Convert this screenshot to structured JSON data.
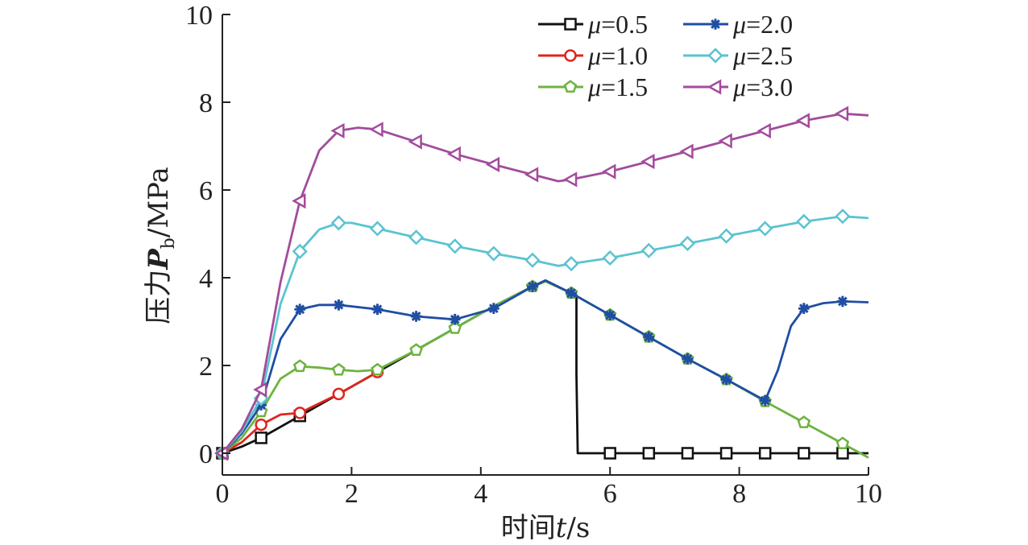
{
  "chart_data": {
    "type": "line",
    "xlabel": "时间t/s",
    "ylabel": "压力P_b/MPa",
    "ylabel_parts": {
      "prefix": "压力",
      "var": "P",
      "sub": "b",
      "suffix": "/MPa"
    },
    "xlabel_parts": {
      "prefix": "时间",
      "var": "t",
      "suffix": "/s"
    },
    "xlim": [
      0,
      10
    ],
    "ylim": [
      0,
      10
    ],
    "xticks": [
      "0",
      "2",
      "4",
      "6",
      "8",
      "10"
    ],
    "yticks": [
      "0",
      "2",
      "4",
      "6",
      "8",
      "10"
    ],
    "grid": false,
    "legend_position": "top-right",
    "series": [
      {
        "name": "μ=0.5",
        "label_var": "μ",
        "label_val": "=0.5",
        "color": "#111111",
        "marker": "square",
        "x": [
          0,
          0.3,
          0.6,
          1.2,
          1.8,
          2.4,
          3.0,
          3.6,
          4.2,
          4.8,
          5.0,
          5.4,
          5.48,
          5.48,
          5.5,
          6.0,
          6.6,
          7.2,
          7.8,
          8.4,
          9.0,
          9.6,
          10.0
        ],
        "y": [
          0,
          0.15,
          0.35,
          0.85,
          1.35,
          1.85,
          2.35,
          2.85,
          3.35,
          3.8,
          3.92,
          3.65,
          3.6,
          1.8,
          0,
          0,
          0,
          0,
          0,
          0,
          0,
          0,
          0
        ],
        "markers_x": [
          0,
          0.6,
          1.2,
          6.0,
          6.6,
          7.2,
          7.8,
          8.4,
          9.0,
          9.6
        ],
        "markers_y": [
          0,
          0.35,
          0.85,
          0,
          0,
          0,
          0,
          0,
          0,
          0
        ]
      },
      {
        "name": "μ=1.0",
        "label_var": "μ",
        "label_val": "=1.0",
        "color": "#e0251c",
        "marker": "circle",
        "x": [
          0,
          0.3,
          0.6,
          0.9,
          1.2,
          1.8,
          2.4
        ],
        "y": [
          0,
          0.25,
          0.65,
          0.88,
          0.92,
          1.35,
          1.85
        ],
        "markers_x": [
          0,
          0.6,
          1.2,
          1.8,
          2.4
        ],
        "markers_y": [
          0,
          0.65,
          0.92,
          1.35,
          1.85
        ]
      },
      {
        "name": "μ=1.5",
        "label_var": "μ",
        "label_val": "=1.5",
        "color": "#6db33f",
        "marker": "pentagon",
        "x": [
          0,
          0.3,
          0.6,
          0.9,
          1.2,
          1.5,
          1.8,
          2.1,
          2.4,
          3.0,
          3.6,
          4.2,
          4.8,
          5.0,
          5.4,
          6.0,
          6.6,
          7.2,
          7.8,
          8.4,
          9.0,
          9.6,
          10.0
        ],
        "y": [
          0,
          0.35,
          0.95,
          1.7,
          1.98,
          1.95,
          1.9,
          1.87,
          1.9,
          2.35,
          2.85,
          3.35,
          3.8,
          3.92,
          3.65,
          3.15,
          2.65,
          2.15,
          1.68,
          1.18,
          0.7,
          0.22,
          -0.1
        ],
        "markers_x": [
          0,
          0.6,
          1.2,
          1.8,
          2.4,
          3.0,
          3.6,
          4.8,
          5.4,
          6.0,
          6.6,
          7.2,
          7.8,
          8.4,
          9.0,
          9.6
        ],
        "markers_y": [
          0,
          0.95,
          1.98,
          1.9,
          1.9,
          2.35,
          2.85,
          3.8,
          3.65,
          3.15,
          2.65,
          2.15,
          1.68,
          1.18,
          0.7,
          0.22
        ]
      },
      {
        "name": "μ=2.0",
        "label_var": "μ",
        "label_val": "=2.0",
        "color": "#1f4ea3",
        "marker": "asterisk",
        "x": [
          0,
          0.3,
          0.6,
          0.9,
          1.2,
          1.5,
          1.8,
          2.4,
          3.0,
          3.6,
          4.2,
          4.8,
          5.0,
          5.4,
          6.0,
          6.6,
          7.2,
          7.8,
          8.4,
          8.6,
          8.8,
          9.0,
          9.3,
          9.6,
          10.0
        ],
        "y": [
          0,
          0.45,
          1.1,
          2.6,
          3.28,
          3.38,
          3.38,
          3.28,
          3.12,
          3.05,
          3.3,
          3.8,
          3.94,
          3.65,
          3.15,
          2.65,
          2.15,
          1.68,
          1.2,
          1.9,
          2.9,
          3.3,
          3.42,
          3.46,
          3.44
        ],
        "markers_x": [
          0,
          0.6,
          1.2,
          1.8,
          2.4,
          3.0,
          3.6,
          4.2,
          4.8,
          5.4,
          6.0,
          6.6,
          7.2,
          7.8,
          8.4,
          9.0,
          9.6
        ],
        "markers_y": [
          0,
          1.1,
          3.28,
          3.38,
          3.28,
          3.12,
          3.05,
          3.3,
          3.8,
          3.65,
          3.15,
          2.65,
          2.15,
          1.68,
          1.2,
          3.3,
          3.46
        ]
      },
      {
        "name": "μ=2.5",
        "label_var": "μ",
        "label_val": "=2.5",
        "color": "#5bc3d0",
        "marker": "diamond",
        "x": [
          0,
          0.3,
          0.6,
          0.9,
          1.2,
          1.5,
          1.8,
          2.0,
          2.4,
          3.0,
          3.6,
          4.2,
          4.8,
          5.2,
          5.4,
          6.0,
          6.6,
          7.2,
          7.8,
          8.4,
          9.0,
          9.6,
          10.0
        ],
        "y": [
          0,
          0.5,
          1.25,
          3.4,
          4.6,
          5.1,
          5.25,
          5.25,
          5.12,
          4.92,
          4.72,
          4.55,
          4.4,
          4.27,
          4.32,
          4.45,
          4.62,
          4.78,
          4.95,
          5.12,
          5.28,
          5.4,
          5.36
        ],
        "markers_x": [
          0,
          0.6,
          1.2,
          1.8,
          2.4,
          3.0,
          3.6,
          4.2,
          4.8,
          5.4,
          6.0,
          6.6,
          7.2,
          7.8,
          8.4,
          9.0,
          9.6
        ],
        "markers_y": [
          0,
          1.25,
          4.6,
          5.25,
          5.12,
          4.92,
          4.72,
          4.55,
          4.4,
          4.32,
          4.45,
          4.62,
          4.78,
          4.95,
          5.12,
          5.28,
          5.4
        ]
      },
      {
        "name": "μ=3.0",
        "label_var": "μ",
        "label_val": "=3.0",
        "color": "#a24c9c",
        "marker": "triangle-left",
        "x": [
          0,
          0.3,
          0.6,
          0.9,
          1.2,
          1.5,
          1.8,
          2.1,
          2.4,
          3.0,
          3.6,
          4.2,
          4.8,
          5.2,
          5.4,
          6.0,
          6.6,
          7.2,
          7.8,
          8.4,
          9.0,
          9.6,
          10.0
        ],
        "y": [
          0,
          0.55,
          1.45,
          3.9,
          5.75,
          6.9,
          7.35,
          7.42,
          7.38,
          7.1,
          6.82,
          6.58,
          6.35,
          6.2,
          6.24,
          6.42,
          6.65,
          6.88,
          7.12,
          7.35,
          7.58,
          7.74,
          7.7
        ],
        "markers_x": [
          0,
          0.6,
          1.2,
          1.8,
          2.4,
          3.0,
          3.6,
          4.2,
          4.8,
          5.4,
          6.0,
          6.6,
          7.2,
          7.8,
          8.4,
          9.0,
          9.6
        ],
        "markers_y": [
          0,
          1.45,
          5.75,
          7.35,
          7.38,
          7.1,
          6.82,
          6.58,
          6.35,
          6.24,
          6.42,
          6.65,
          6.88,
          7.12,
          7.35,
          7.58,
          7.74
        ]
      }
    ]
  }
}
